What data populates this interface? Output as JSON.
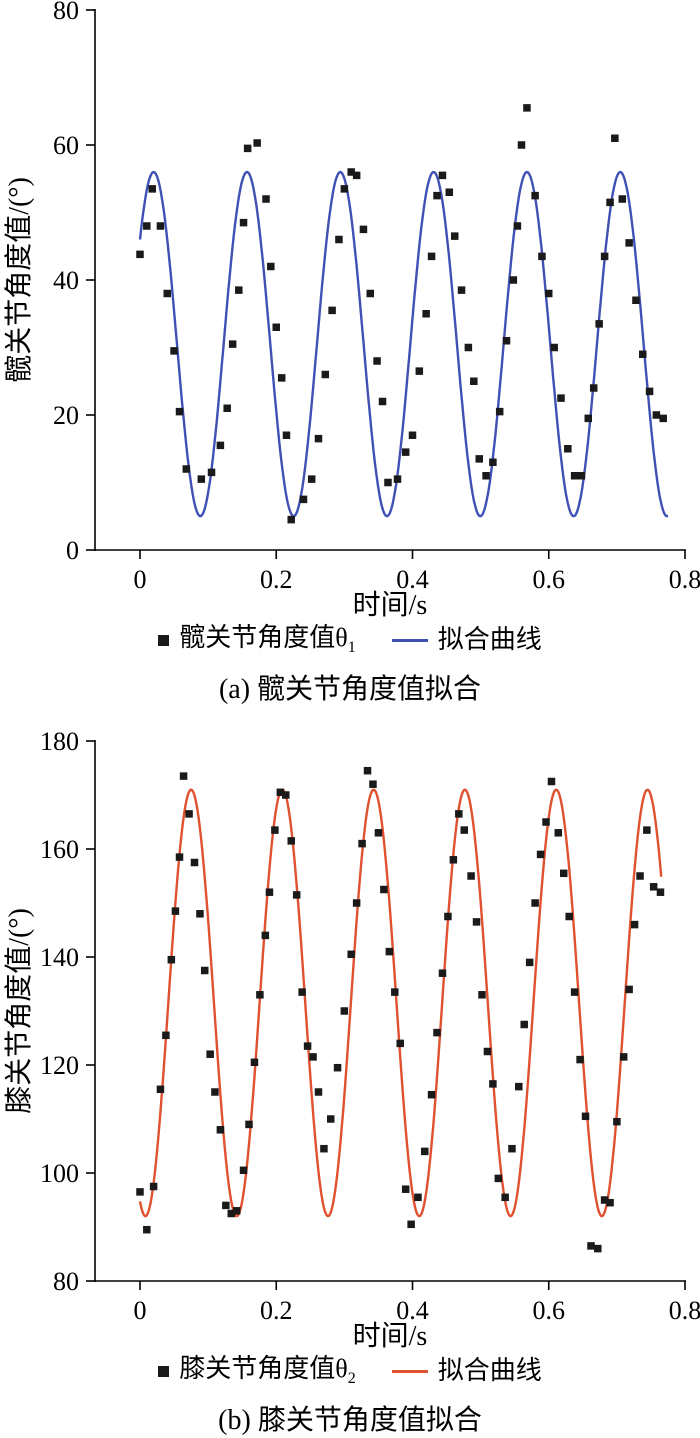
{
  "chart_data": [
    {
      "type": "scatter",
      "caption": "(a) 髋关节角度值拟合",
      "xlabel": "时间/s",
      "ylabel": "髋关节角度值/(°)",
      "legend_scatter": "髋关节角度值θ",
      "legend_scatter_sub": "1",
      "legend_line": "拟合曲线",
      "xlim": [
        0,
        0.8
      ],
      "ylim": [
        0,
        80
      ],
      "xticks": [
        0,
        0.2,
        0.4,
        0.6,
        0.8
      ],
      "yticks": [
        0,
        20,
        40,
        60,
        80
      ],
      "line_color": "#3f51b5",
      "marker_color": "#1a1a1a",
      "fit_curve": {
        "mean": 30.5,
        "amplitude": 25.5,
        "period": 0.137,
        "peak_x": 0.02,
        "domain": [
          0.0,
          0.775
        ]
      },
      "points": [
        [
          0.0,
          43.8
        ],
        [
          0.01,
          48.0
        ],
        [
          0.018,
          53.5
        ],
        [
          0.03,
          48.0
        ],
        [
          0.04,
          38.0
        ],
        [
          0.05,
          29.5
        ],
        [
          0.058,
          20.5
        ],
        [
          0.068,
          12.0
        ],
        [
          0.09,
          10.5
        ],
        [
          0.105,
          11.5
        ],
        [
          0.118,
          15.5
        ],
        [
          0.128,
          21.0
        ],
        [
          0.136,
          30.5
        ],
        [
          0.145,
          38.5
        ],
        [
          0.152,
          48.5
        ],
        [
          0.158,
          59.5
        ],
        [
          0.172,
          60.3
        ],
        [
          0.185,
          52.0
        ],
        [
          0.192,
          42.0
        ],
        [
          0.2,
          33.0
        ],
        [
          0.208,
          25.5
        ],
        [
          0.215,
          17.0
        ],
        [
          0.222,
          4.5
        ],
        [
          0.24,
          7.5
        ],
        [
          0.252,
          10.5
        ],
        [
          0.262,
          16.5
        ],
        [
          0.272,
          26.0
        ],
        [
          0.282,
          35.5
        ],
        [
          0.292,
          46.0
        ],
        [
          0.3,
          53.5
        ],
        [
          0.31,
          56.0
        ],
        [
          0.318,
          55.5
        ],
        [
          0.328,
          47.5
        ],
        [
          0.338,
          38.0
        ],
        [
          0.348,
          28.0
        ],
        [
          0.356,
          22.0
        ],
        [
          0.364,
          10.0
        ],
        [
          0.378,
          10.5
        ],
        [
          0.39,
          14.5
        ],
        [
          0.4,
          17.0
        ],
        [
          0.41,
          26.5
        ],
        [
          0.42,
          35.0
        ],
        [
          0.428,
          43.5
        ],
        [
          0.436,
          52.5
        ],
        [
          0.444,
          55.5
        ],
        [
          0.454,
          53.0
        ],
        [
          0.462,
          46.5
        ],
        [
          0.472,
          38.5
        ],
        [
          0.482,
          30.0
        ],
        [
          0.49,
          25.0
        ],
        [
          0.498,
          13.5
        ],
        [
          0.508,
          11.0
        ],
        [
          0.518,
          13.0
        ],
        [
          0.528,
          20.5
        ],
        [
          0.538,
          31.0
        ],
        [
          0.548,
          40.0
        ],
        [
          0.554,
          48.0
        ],
        [
          0.56,
          60.0
        ],
        [
          0.568,
          65.5
        ],
        [
          0.58,
          52.5
        ],
        [
          0.59,
          43.5
        ],
        [
          0.6,
          38.0
        ],
        [
          0.608,
          30.0
        ],
        [
          0.618,
          22.5
        ],
        [
          0.628,
          15.0
        ],
        [
          0.638,
          11.0
        ],
        [
          0.648,
          11.0
        ],
        [
          0.658,
          19.5
        ],
        [
          0.666,
          24.0
        ],
        [
          0.674,
          33.5
        ],
        [
          0.682,
          43.5
        ],
        [
          0.69,
          51.5
        ],
        [
          0.697,
          61.0
        ],
        [
          0.708,
          52.0
        ],
        [
          0.718,
          45.5
        ],
        [
          0.728,
          37.0
        ],
        [
          0.738,
          29.0
        ],
        [
          0.748,
          23.5
        ],
        [
          0.758,
          20.0
        ],
        [
          0.768,
          19.5
        ]
      ]
    },
    {
      "type": "scatter",
      "caption": "(b) 膝关节角度值拟合",
      "xlabel": "时间/s",
      "ylabel": "膝关节角度值/(°)",
      "legend_scatter": "膝关节角度值θ",
      "legend_scatter_sub": "2",
      "legend_line": "拟合曲线",
      "xlim": [
        0,
        0.8
      ],
      "ylim": [
        80,
        180
      ],
      "xticks": [
        0,
        0.2,
        0.4,
        0.6,
        0.8
      ],
      "yticks": [
        80,
        100,
        120,
        140,
        160,
        180
      ],
      "line_color": "#e0512f",
      "marker_color": "#1a1a1a",
      "fit_curve": {
        "mean": 131.5,
        "amplitude": 39.5,
        "period": 0.134,
        "peak_x": 0.075,
        "domain": [
          0.0,
          0.765
        ]
      },
      "points": [
        [
          0.0,
          96.5
        ],
        [
          0.01,
          89.5
        ],
        [
          0.02,
          97.5
        ],
        [
          0.03,
          115.5
        ],
        [
          0.038,
          125.5
        ],
        [
          0.046,
          139.5
        ],
        [
          0.052,
          148.5
        ],
        [
          0.058,
          158.5
        ],
        [
          0.064,
          173.5
        ],
        [
          0.072,
          166.5
        ],
        [
          0.08,
          157.5
        ],
        [
          0.088,
          148.0
        ],
        [
          0.095,
          137.5
        ],
        [
          0.103,
          122.0
        ],
        [
          0.11,
          115.0
        ],
        [
          0.118,
          108.0
        ],
        [
          0.126,
          94.0
        ],
        [
          0.134,
          92.5
        ],
        [
          0.142,
          93.0
        ],
        [
          0.152,
          100.5
        ],
        [
          0.16,
          109.0
        ],
        [
          0.168,
          120.5
        ],
        [
          0.176,
          133.0
        ],
        [
          0.184,
          144.0
        ],
        [
          0.19,
          152.0
        ],
        [
          0.198,
          163.5
        ],
        [
          0.206,
          170.5
        ],
        [
          0.214,
          170.0
        ],
        [
          0.222,
          161.5
        ],
        [
          0.23,
          151.5
        ],
        [
          0.238,
          133.5
        ],
        [
          0.246,
          123.5
        ],
        [
          0.254,
          121.5
        ],
        [
          0.262,
          115.0
        ],
        [
          0.27,
          104.5
        ],
        [
          0.28,
          110.0
        ],
        [
          0.29,
          119.5
        ],
        [
          0.3,
          130.0
        ],
        [
          0.31,
          140.5
        ],
        [
          0.318,
          150.0
        ],
        [
          0.326,
          161.0
        ],
        [
          0.334,
          174.5
        ],
        [
          0.342,
          172.0
        ],
        [
          0.35,
          163.0
        ],
        [
          0.358,
          152.5
        ],
        [
          0.366,
          141.0
        ],
        [
          0.374,
          133.5
        ],
        [
          0.382,
          124.0
        ],
        [
          0.39,
          97.0
        ],
        [
          0.398,
          90.5
        ],
        [
          0.408,
          95.5
        ],
        [
          0.418,
          104.0
        ],
        [
          0.428,
          114.5
        ],
        [
          0.436,
          126.0
        ],
        [
          0.444,
          137.0
        ],
        [
          0.452,
          147.5
        ],
        [
          0.46,
          158.0
        ],
        [
          0.468,
          166.5
        ],
        [
          0.476,
          163.5
        ],
        [
          0.486,
          155.0
        ],
        [
          0.494,
          146.5
        ],
        [
          0.502,
          133.0
        ],
        [
          0.51,
          122.5
        ],
        [
          0.518,
          116.5
        ],
        [
          0.526,
          99.0
        ],
        [
          0.536,
          95.5
        ],
        [
          0.546,
          104.5
        ],
        [
          0.556,
          116.0
        ],
        [
          0.564,
          127.5
        ],
        [
          0.572,
          139.0
        ],
        [
          0.58,
          150.0
        ],
        [
          0.588,
          159.0
        ],
        [
          0.596,
          165.0
        ],
        [
          0.604,
          172.5
        ],
        [
          0.614,
          163.0
        ],
        [
          0.622,
          155.5
        ],
        [
          0.63,
          147.5
        ],
        [
          0.638,
          133.5
        ],
        [
          0.646,
          121.0
        ],
        [
          0.654,
          110.5
        ],
        [
          0.662,
          86.5
        ],
        [
          0.672,
          86.0
        ],
        [
          0.682,
          95.0
        ],
        [
          0.69,
          94.5
        ],
        [
          0.7,
          109.5
        ],
        [
          0.71,
          121.5
        ],
        [
          0.718,
          134.0
        ],
        [
          0.726,
          146.0
        ],
        [
          0.734,
          155.0
        ],
        [
          0.744,
          163.5
        ],
        [
          0.754,
          153.0
        ],
        [
          0.764,
          152.0
        ]
      ]
    }
  ]
}
